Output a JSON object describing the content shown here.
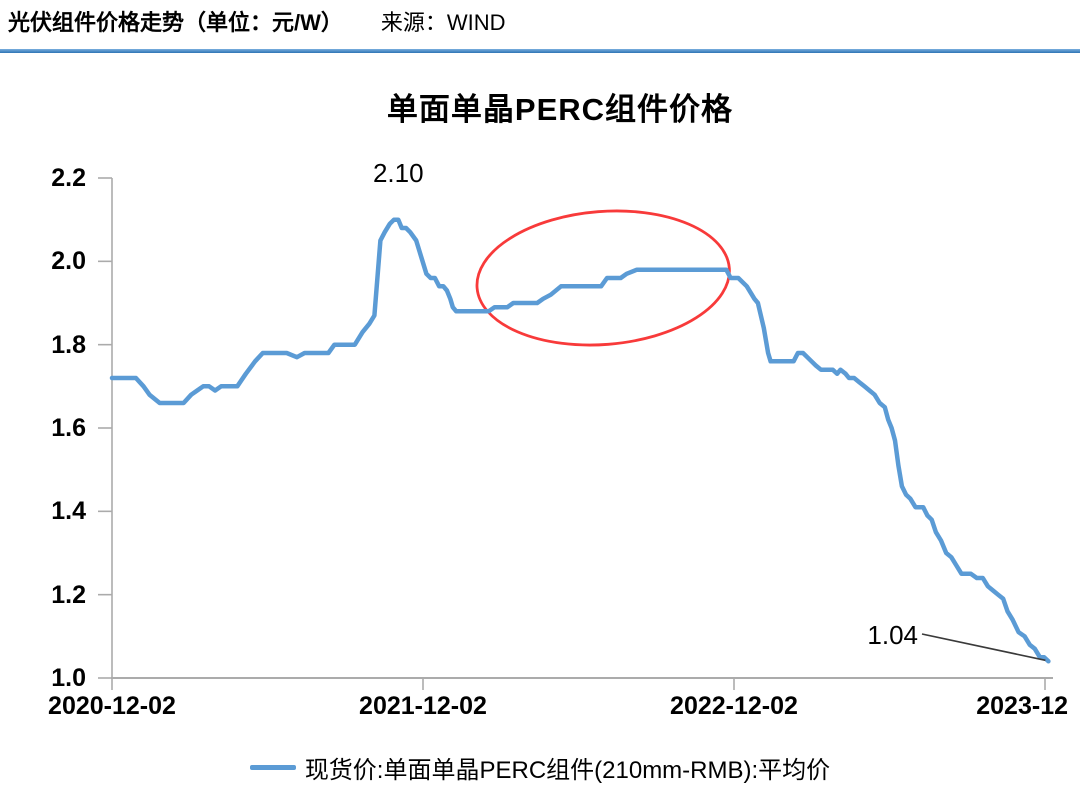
{
  "header": {
    "title": "光伏组件价格走势（单位：元/W）",
    "source": "来源：WIND",
    "rule_color": "#2E74B5"
  },
  "chart_data": {
    "type": "line",
    "title": "单面单晶PERC组件价格",
    "unit": "元/W",
    "xlabel": "",
    "ylabel": "",
    "ylim": [
      1.0,
      2.2
    ],
    "grid": false,
    "legend_position": "bottom",
    "axis_color": "#ABABAB",
    "y_ticks": [
      "2.2",
      "2.0",
      "1.8",
      "1.6",
      "1.4",
      "1.2",
      "1.0"
    ],
    "x_ticks": [
      {
        "label": "2020-12-02",
        "date": "2020-12-02"
      },
      {
        "label": "2021-12-02",
        "date": "2021-12-02"
      },
      {
        "label": "2022-12-02",
        "date": "2022-12-02"
      },
      {
        "label": "2023-12",
        "date": "2023-12-02"
      }
    ],
    "series": [
      {
        "name": "现货价:单面单晶PERC组件(210mm-RMB):平均价",
        "color": "#5B9BD5",
        "points": [
          [
            "2020-12-02",
            1.72
          ],
          [
            "2020-12-30",
            1.72
          ],
          [
            "2021-01-08",
            1.7
          ],
          [
            "2021-01-15",
            1.68
          ],
          [
            "2021-01-27",
            1.66
          ],
          [
            "2021-02-24",
            1.66
          ],
          [
            "2021-03-05",
            1.68
          ],
          [
            "2021-03-12",
            1.69
          ],
          [
            "2021-03-19",
            1.7
          ],
          [
            "2021-03-26",
            1.7
          ],
          [
            "2021-04-02",
            1.69
          ],
          [
            "2021-04-09",
            1.7
          ],
          [
            "2021-04-28",
            1.7
          ],
          [
            "2021-05-08",
            1.73
          ],
          [
            "2021-05-19",
            1.76
          ],
          [
            "2021-05-28",
            1.78
          ],
          [
            "2021-06-25",
            1.78
          ],
          [
            "2021-07-07",
            1.77
          ],
          [
            "2021-07-16",
            1.78
          ],
          [
            "2021-08-13",
            1.78
          ],
          [
            "2021-08-20",
            1.8
          ],
          [
            "2021-09-13",
            1.8
          ],
          [
            "2021-09-22",
            1.83
          ],
          [
            "2021-09-30",
            1.85
          ],
          [
            "2021-10-06",
            1.87
          ],
          [
            "2021-10-13",
            2.05
          ],
          [
            "2021-10-18",
            2.07
          ],
          [
            "2021-10-24",
            2.09
          ],
          [
            "2021-10-29",
            2.1
          ],
          [
            "2021-11-03",
            2.1
          ],
          [
            "2021-11-07",
            2.08
          ],
          [
            "2021-11-12",
            2.08
          ],
          [
            "2021-11-17",
            2.07
          ],
          [
            "2021-11-24",
            2.05
          ],
          [
            "2021-11-30",
            2.01
          ],
          [
            "2021-12-06",
            1.97
          ],
          [
            "2021-12-11",
            1.96
          ],
          [
            "2021-12-16",
            1.96
          ],
          [
            "2021-12-21",
            1.94
          ],
          [
            "2021-12-26",
            1.94
          ],
          [
            "2021-12-30",
            1.93
          ],
          [
            "2022-01-03",
            1.91
          ],
          [
            "2022-01-06",
            1.89
          ],
          [
            "2022-01-10",
            1.88
          ],
          [
            "2022-02-17",
            1.88
          ],
          [
            "2022-02-24",
            1.89
          ],
          [
            "2022-03-11",
            1.89
          ],
          [
            "2022-03-18",
            1.9
          ],
          [
            "2022-04-15",
            1.9
          ],
          [
            "2022-04-22",
            1.91
          ],
          [
            "2022-05-01",
            1.92
          ],
          [
            "2022-05-13",
            1.94
          ],
          [
            "2022-06-29",
            1.94
          ],
          [
            "2022-07-06",
            1.96
          ],
          [
            "2022-07-22",
            1.96
          ],
          [
            "2022-07-29",
            1.97
          ],
          [
            "2022-08-10",
            1.98
          ],
          [
            "2022-11-23",
            1.98
          ],
          [
            "2022-11-28",
            1.96
          ],
          [
            "2022-12-07",
            1.96
          ],
          [
            "2022-12-17",
            1.94
          ],
          [
            "2022-12-26",
            1.91
          ],
          [
            "2022-12-30",
            1.9
          ],
          [
            "2023-01-06",
            1.84
          ],
          [
            "2023-01-11",
            1.78
          ],
          [
            "2023-01-14",
            1.76
          ],
          [
            "2023-02-10",
            1.76
          ],
          [
            "2023-02-15",
            1.78
          ],
          [
            "2023-02-21",
            1.78
          ],
          [
            "2023-02-26",
            1.77
          ],
          [
            "2023-03-03",
            1.76
          ],
          [
            "2023-03-08",
            1.75
          ],
          [
            "2023-03-14",
            1.74
          ],
          [
            "2023-03-28",
            1.74
          ],
          [
            "2023-04-02",
            1.73
          ],
          [
            "2023-04-06",
            1.74
          ],
          [
            "2023-04-12",
            1.73
          ],
          [
            "2023-04-16",
            1.72
          ],
          [
            "2023-04-22",
            1.72
          ],
          [
            "2023-04-28",
            1.71
          ],
          [
            "2023-05-04",
            1.7
          ],
          [
            "2023-05-10",
            1.69
          ],
          [
            "2023-05-16",
            1.68
          ],
          [
            "2023-05-22",
            1.66
          ],
          [
            "2023-05-28",
            1.65
          ],
          [
            "2023-06-01",
            1.62
          ],
          [
            "2023-06-05",
            1.6
          ],
          [
            "2023-06-09",
            1.57
          ],
          [
            "2023-06-13",
            1.51
          ],
          [
            "2023-06-17",
            1.46
          ],
          [
            "2023-06-22",
            1.44
          ],
          [
            "2023-06-27",
            1.43
          ],
          [
            "2023-07-03",
            1.41
          ],
          [
            "2023-07-12",
            1.41
          ],
          [
            "2023-07-17",
            1.39
          ],
          [
            "2023-07-22",
            1.38
          ],
          [
            "2023-07-27",
            1.35
          ],
          [
            "2023-08-02",
            1.33
          ],
          [
            "2023-08-08",
            1.3
          ],
          [
            "2023-08-14",
            1.29
          ],
          [
            "2023-08-20",
            1.27
          ],
          [
            "2023-08-26",
            1.25
          ],
          [
            "2023-09-06",
            1.25
          ],
          [
            "2023-09-13",
            1.24
          ],
          [
            "2023-09-20",
            1.24
          ],
          [
            "2023-09-26",
            1.22
          ],
          [
            "2023-10-02",
            1.21
          ],
          [
            "2023-10-08",
            1.2
          ],
          [
            "2023-10-14",
            1.19
          ],
          [
            "2023-10-19",
            1.16
          ],
          [
            "2023-10-25",
            1.14
          ],
          [
            "2023-11-01",
            1.11
          ],
          [
            "2023-11-08",
            1.1
          ],
          [
            "2023-11-14",
            1.08
          ],
          [
            "2023-11-20",
            1.07
          ],
          [
            "2023-11-26",
            1.05
          ],
          [
            "2023-12-01",
            1.05
          ],
          [
            "2023-12-06",
            1.04
          ]
        ]
      }
    ],
    "annotations": {
      "peak": {
        "label": "2.10",
        "date": "2021-11-03",
        "value": 2.1
      },
      "end": {
        "label": "1.04",
        "date": "2023-12-06",
        "value": 1.04
      },
      "highlight_ellipse": {
        "color": "#F83A3A",
        "x_from": "2022-02-03",
        "x_to": "2022-11-27",
        "y_center": 1.96
      }
    },
    "legend": [
      {
        "label": "现货价:单面单晶PERC组件(210mm-RMB):平均价",
        "color": "#5B9BD5"
      }
    ]
  }
}
